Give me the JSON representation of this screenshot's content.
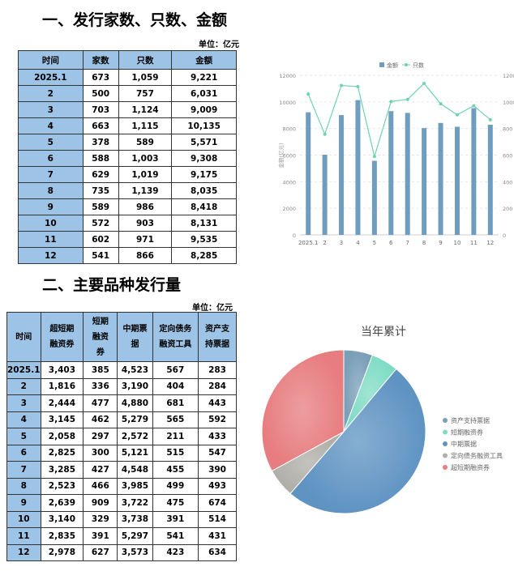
{
  "section1": {
    "title": "一、发行家数、只数、金额",
    "unit": "单位：亿元",
    "headers": [
      "时间",
      "家数",
      "只数",
      "金额"
    ],
    "rows": [
      [
        "2025.1",
        "673",
        "1,059",
        "9,221"
      ],
      [
        "2",
        "500",
        "757",
        "6,031"
      ],
      [
        "3",
        "703",
        "1,124",
        "9,009"
      ],
      [
        "4",
        "663",
        "1,115",
        "10,135"
      ],
      [
        "5",
        "378",
        "589",
        "5,571"
      ],
      [
        "6",
        "588",
        "1,003",
        "9,308"
      ],
      [
        "7",
        "629",
        "1,019",
        "9,175"
      ],
      [
        "8",
        "735",
        "1,139",
        "8,035"
      ],
      [
        "9",
        "589",
        "986",
        "8,418"
      ],
      [
        "10",
        "572",
        "903",
        "8,131"
      ],
      [
        "11",
        "602",
        "971",
        "9,535"
      ],
      [
        "12",
        "541",
        "866",
        "8,285"
      ]
    ]
  },
  "section2": {
    "title": "二、主要品种发行量",
    "unit": "单位：亿元",
    "headers": [
      "时间",
      "超短期融资券",
      "短期融资券",
      "中期票据",
      "定向债务融资工具",
      "资产支持票据"
    ],
    "rows": [
      [
        "2025.1",
        "3,403",
        "385",
        "4,523",
        "567",
        "283"
      ],
      [
        "2",
        "1,816",
        "336",
        "3,190",
        "404",
        "284"
      ],
      [
        "3",
        "2,444",
        "477",
        "4,880",
        "681",
        "443"
      ],
      [
        "4",
        "3,145",
        "462",
        "5,279",
        "565",
        "592"
      ],
      [
        "5",
        "2,058",
        "297",
        "2,572",
        "211",
        "433"
      ],
      [
        "6",
        "2,825",
        "300",
        "5,121",
        "515",
        "547"
      ],
      [
        "7",
        "3,285",
        "427",
        "4,548",
        "455",
        "390"
      ],
      [
        "8",
        "2,523",
        "466",
        "3,985",
        "499",
        "493"
      ],
      [
        "9",
        "2,639",
        "909",
        "3,722",
        "475",
        "674"
      ],
      [
        "10",
        "3,140",
        "329",
        "3,738",
        "391",
        "514"
      ],
      [
        "11",
        "2,835",
        "391",
        "5,297",
        "541",
        "431"
      ],
      [
        "12",
        "2,978",
        "627",
        "3,573",
        "423",
        "634"
      ]
    ]
  },
  "chart_data": [
    {
      "type": "bar+line",
      "categories": [
        "2025.1",
        "2",
        "3",
        "4",
        "5",
        "6",
        "7",
        "8",
        "9",
        "10",
        "11",
        "12"
      ],
      "series": [
        {
          "name": "金额",
          "type": "bar",
          "axis": "left",
          "color": "#6f9dbd",
          "values": [
            9221,
            6031,
            9009,
            10135,
            5571,
            9308,
            9175,
            8035,
            8418,
            8131,
            9535,
            8285
          ]
        },
        {
          "name": "只数",
          "type": "line",
          "axis": "right",
          "color": "#6fd3b0",
          "values": [
            1059,
            757,
            1124,
            1115,
            589,
            1003,
            1019,
            1139,
            986,
            903,
            971,
            866
          ]
        }
      ],
      "ylabel": "金额(亿元)",
      "ylim": [
        0,
        12000
      ],
      "y2lim": [
        0,
        1200
      ],
      "yticks": [
        "0",
        "2000",
        "4000",
        "6000",
        "8000",
        "10000",
        "12000"
      ],
      "y2ticks": [
        "0",
        "200",
        "400",
        "600",
        "800",
        "1000",
        "1200"
      ],
      "legend": "top",
      "grid": true
    },
    {
      "type": "pie",
      "title": "当年累计",
      "legend": "right",
      "slices": [
        {
          "name": "资产支持票据",
          "value": 5718,
          "color": "#7a9fb8"
        },
        {
          "name": "短期融资券",
          "value": 5406,
          "color": "#7fdcc4"
        },
        {
          "name": "中期票据",
          "value": 50428,
          "color": "#5f93c2"
        },
        {
          "name": "定向债务融资工具",
          "value": 5727,
          "color": "#b0aea8"
        },
        {
          "name": "超短期融资券",
          "value": 33091,
          "color": "#e77d80"
        }
      ]
    }
  ]
}
